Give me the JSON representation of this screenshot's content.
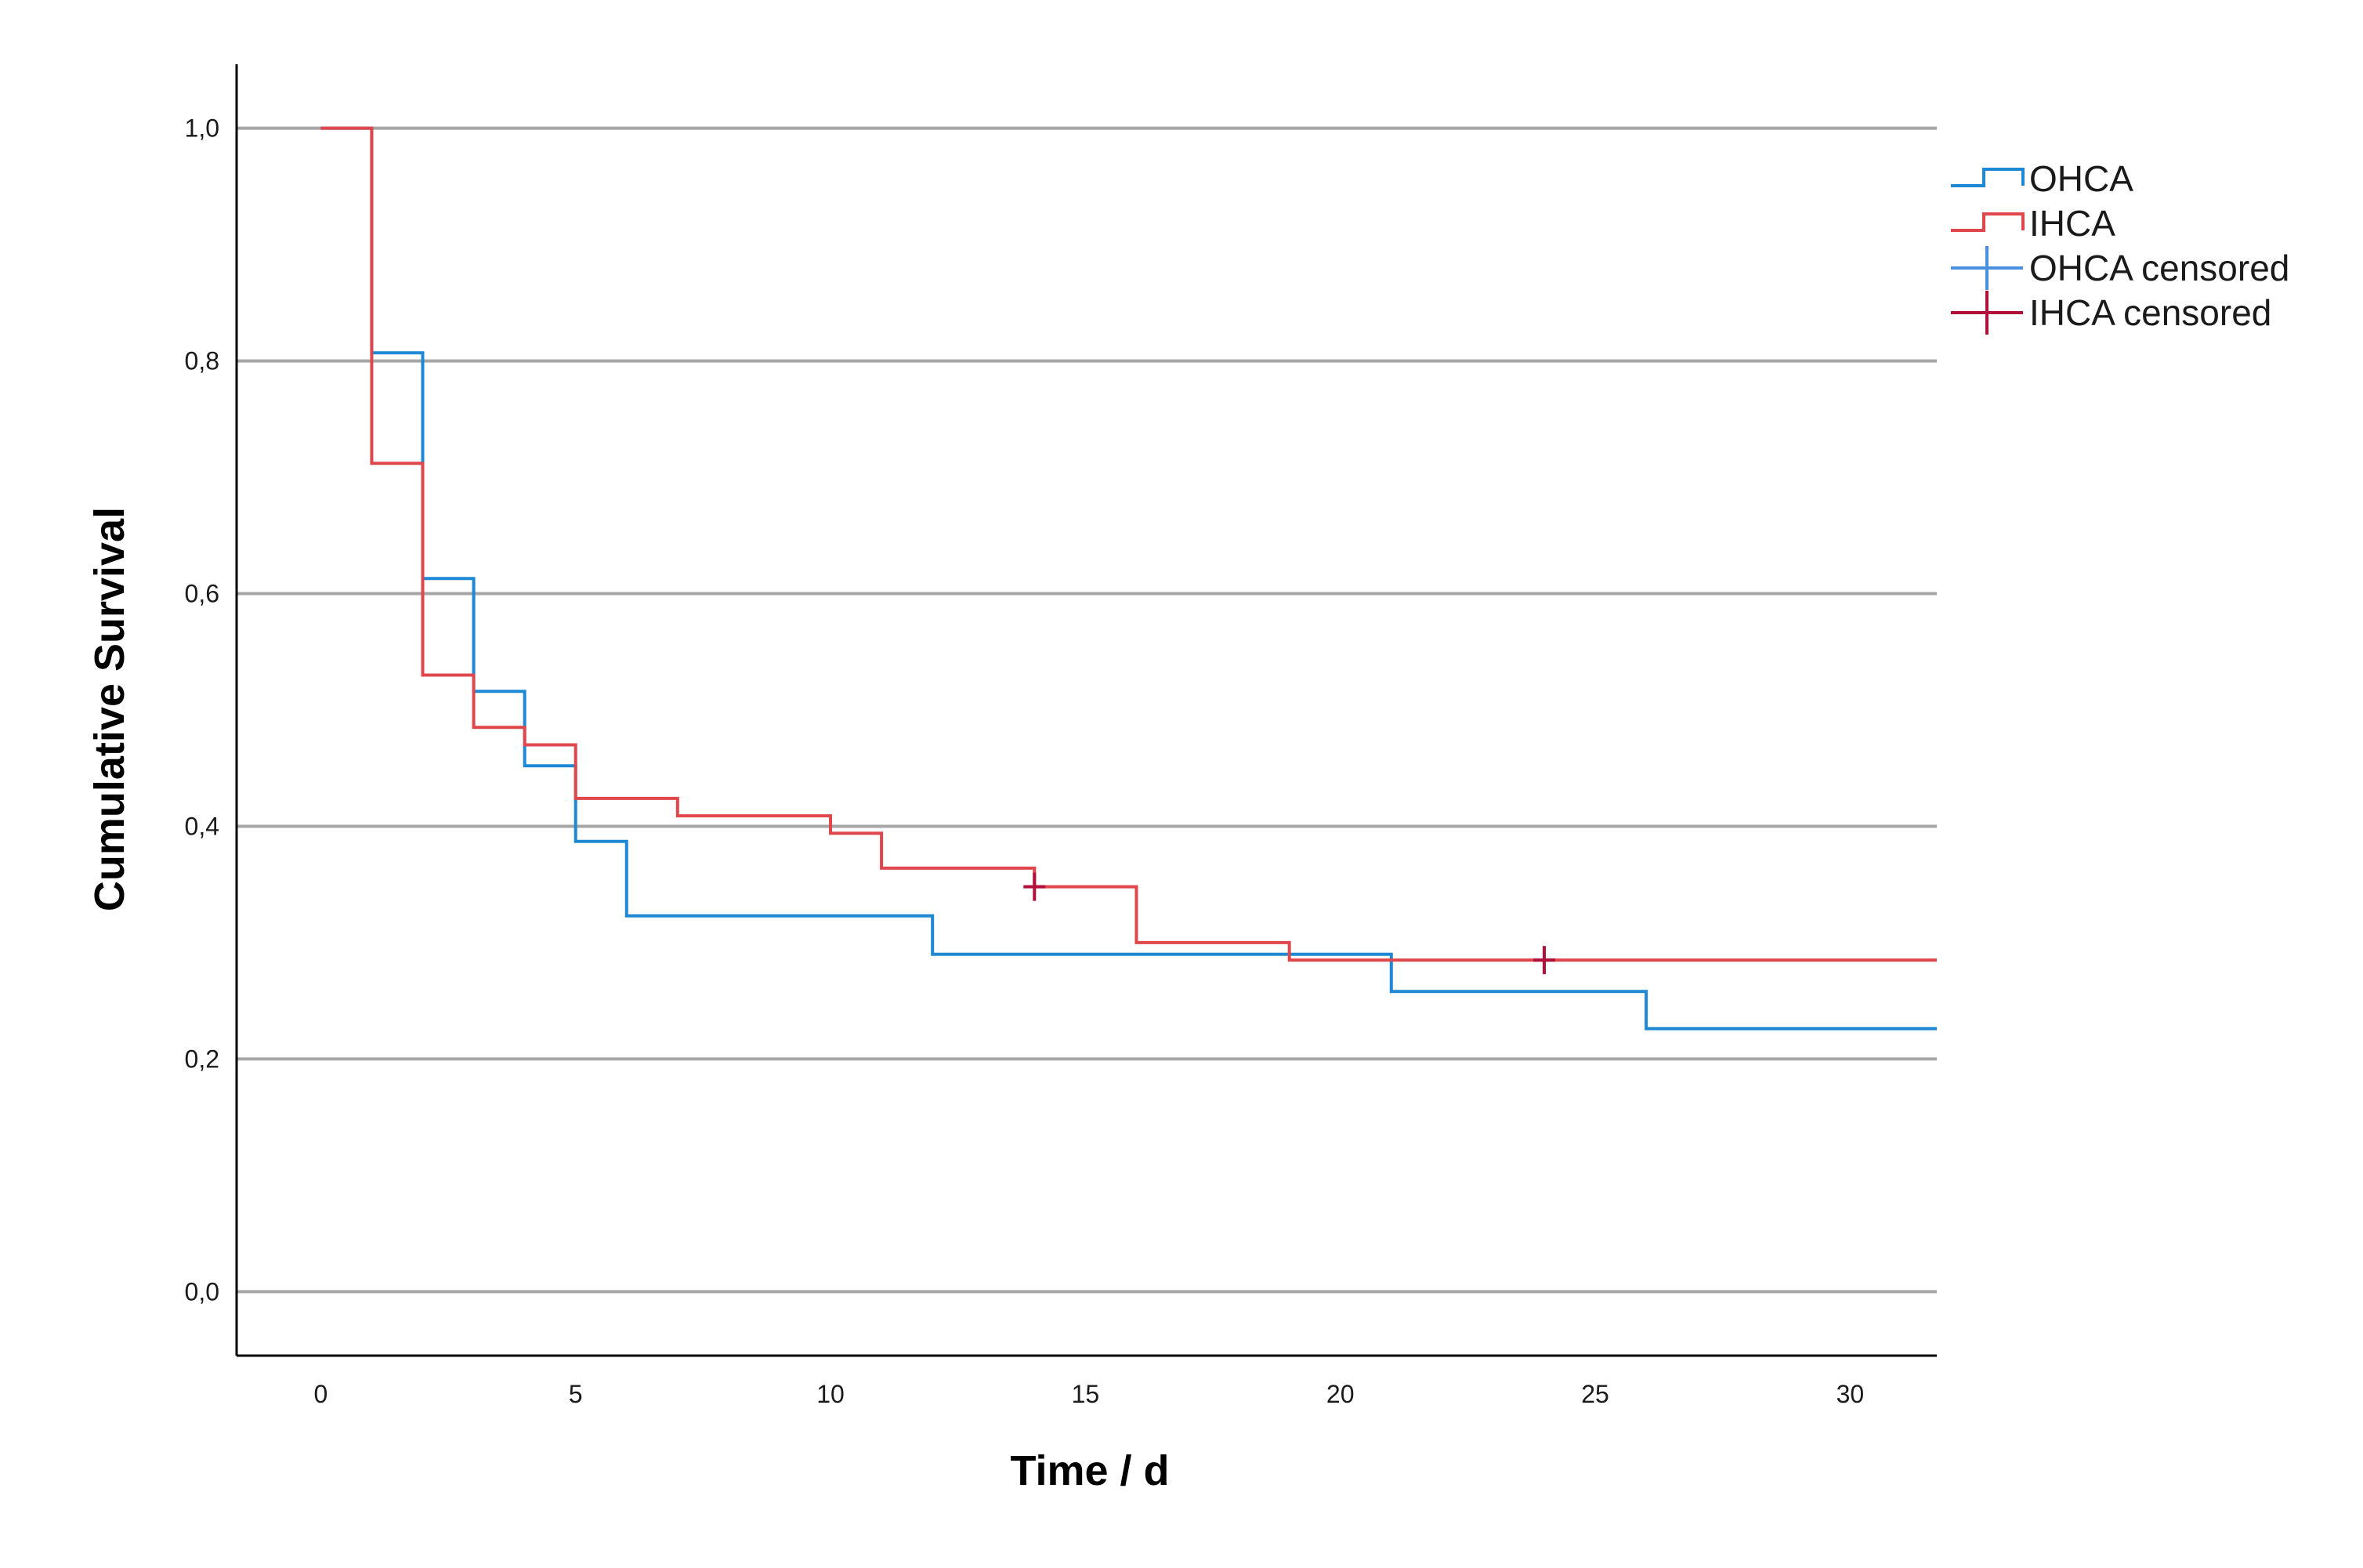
{
  "chart_data": {
    "type": "line",
    "subtype": "kaplan-meier step",
    "xlabel": "Time / d",
    "ylabel": "Cumulative Survival",
    "xlim": [
      -1.65,
      31.7
    ],
    "ylim": [
      -0.055,
      1.055
    ],
    "xticks": [
      0,
      5,
      10,
      15,
      20,
      25,
      30
    ],
    "xtick_labels": [
      "0",
      "5",
      "10",
      "15",
      "20",
      "25",
      "30"
    ],
    "yticks": [
      0.0,
      0.2,
      0.4,
      0.6,
      0.8,
      1.0
    ],
    "ytick_labels": [
      "0,0",
      "0,2",
      "0,4",
      "0,6",
      "0,8",
      "1,0"
    ],
    "grid": "horizontal gridlines at y ticks",
    "legend_placement": "right",
    "series": [
      {
        "name": "OHCA",
        "color": "#1f88d4",
        "steps": [
          [
            0,
            1.0
          ],
          [
            1,
            0.807
          ],
          [
            2,
            0.613
          ],
          [
            3,
            0.516
          ],
          [
            4,
            0.452
          ],
          [
            5,
            0.387
          ],
          [
            6,
            0.323
          ],
          [
            12,
            0.29
          ],
          [
            21,
            0.258
          ],
          [
            26,
            0.226
          ],
          [
            31.7,
            0.226
          ]
        ],
        "censored": []
      },
      {
        "name": "IHCA",
        "color": "#e0474c",
        "steps": [
          [
            0,
            1.0
          ],
          [
            1,
            0.712
          ],
          [
            2,
            0.53
          ],
          [
            3,
            0.485
          ],
          [
            4,
            0.47
          ],
          [
            5,
            0.424
          ],
          [
            7,
            0.409
          ],
          [
            10,
            0.394
          ],
          [
            11,
            0.364
          ],
          [
            14,
            0.348
          ],
          [
            16,
            0.3
          ],
          [
            19,
            0.285
          ],
          [
            31.7,
            0.285
          ]
        ],
        "censored": [
          [
            14,
            0.348
          ],
          [
            24,
            0.285
          ]
        ]
      }
    ],
    "legend": [
      {
        "label": "OHCA",
        "kind": "step",
        "color": "#1f88d4"
      },
      {
        "label": "IHCA",
        "kind": "step",
        "color": "#e0474c"
      },
      {
        "label": "OHCA censored",
        "kind": "cross",
        "color": "#4a8fe0"
      },
      {
        "label": "IHCA censored",
        "kind": "cross",
        "color": "#b0103a"
      }
    ],
    "colors": {
      "grid": "#a6a6a6",
      "axis": "#000000",
      "ohca_censored": "#4a8fe0",
      "ihca_censored": "#b0103a"
    }
  }
}
